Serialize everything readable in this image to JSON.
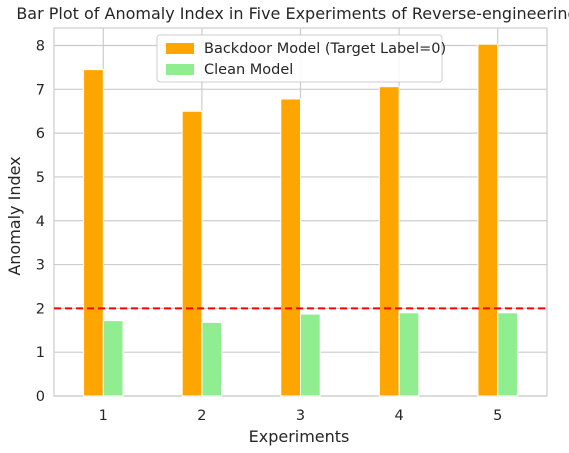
{
  "chart_data": {
    "type": "bar",
    "title": "Bar Plot of Anomaly Index in Five Experiments of Reverse-engineering",
    "xlabel": "Experiments",
    "ylabel": "Anomaly Index",
    "categories": [
      "1",
      "2",
      "3",
      "4",
      "5"
    ],
    "series": [
      {
        "name": "Backdoor Model (Target Label=0)",
        "color": "#ffa500",
        "values": [
          7.45,
          6.5,
          6.78,
          7.06,
          8.03
        ]
      },
      {
        "name": "Clean Model",
        "color": "#90ee90",
        "values": [
          1.72,
          1.68,
          1.87,
          1.9,
          1.9
        ]
      }
    ],
    "yticks": [
      "0",
      "1",
      "2",
      "3",
      "4",
      "5",
      "6",
      "7",
      "8"
    ],
    "ylim": [
      0,
      8.4
    ],
    "threshold": {
      "value": 2,
      "color": "#ff0000",
      "style": "dashed"
    },
    "grid": true,
    "legend_position": "top-center"
  }
}
